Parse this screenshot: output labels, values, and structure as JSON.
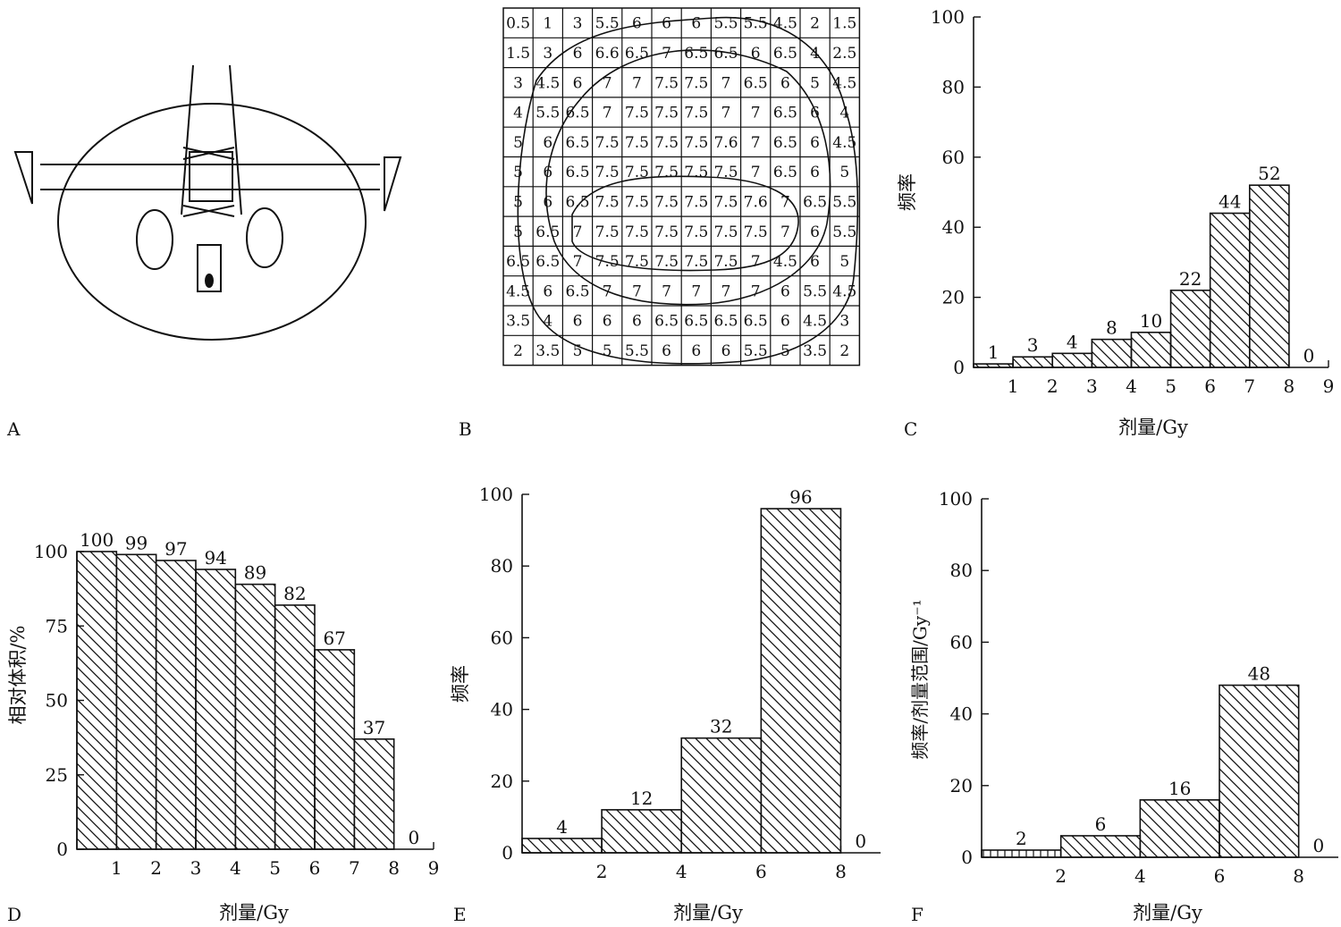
{
  "panel_labels": {
    "A": "A",
    "B": "B",
    "C": "C",
    "D": "D",
    "E": "E",
    "F": "F"
  },
  "axis_labels": {
    "dose": "剂量/Gy",
    "frequency": "频率",
    "relative_volume": "相对体积/%",
    "freq_per_range": "频率/剂量范围/Gy⁻¹"
  },
  "grid_b": {
    "rows": [
      [
        "0.5",
        "1",
        "3",
        "5.5",
        "6",
        "6",
        "6",
        "5.5",
        "5.5",
        "4.5",
        "2",
        "1.5"
      ],
      [
        "1.5",
        "3",
        "6",
        "6.6",
        "6.5",
        "7",
        "6.5",
        "6.5",
        "6",
        "6.5",
        "4",
        "2.5"
      ],
      [
        "3",
        "4.5",
        "6",
        "7",
        "7",
        "7.5",
        "7.5",
        "7",
        "6.5",
        "6",
        "5",
        "4.5"
      ],
      [
        "4",
        "5.5",
        "6.5",
        "7",
        "7.5",
        "7.5",
        "7.5",
        "7",
        "7",
        "6.5",
        "6",
        "4"
      ],
      [
        "5",
        "6",
        "6.5",
        "7.5",
        "7.5",
        "7.5",
        "7.5",
        "7.6",
        "7",
        "6.5",
        "6",
        "4.5"
      ],
      [
        "5",
        "6",
        "6.5",
        "7.5",
        "7.5",
        "7.5",
        "7.5",
        "7.5",
        "7",
        "6.5",
        "6",
        "5"
      ],
      [
        "5",
        "6",
        "6.5",
        "7.5",
        "7.5",
        "7.5",
        "7.5",
        "7.5",
        "7.6",
        "7",
        "6.5",
        "5.5"
      ],
      [
        "5",
        "6.5",
        "7",
        "7.5",
        "7.5",
        "7.5",
        "7.5",
        "7.5",
        "7.5",
        "7",
        "6",
        "5.5"
      ],
      [
        "6.5",
        "6.5",
        "7",
        "7.5",
        "7.5",
        "7.5",
        "7.5",
        "7.5",
        "7",
        "4.5",
        "6",
        "5"
      ],
      [
        "4.5",
        "6",
        "6.5",
        "7",
        "7",
        "7",
        "7",
        "7",
        "7",
        "6",
        "5.5",
        "4.5"
      ],
      [
        "3.5",
        "4",
        "6",
        "6",
        "6",
        "6.5",
        "6.5",
        "6.5",
        "6.5",
        "6",
        "4.5",
        "3"
      ],
      [
        "2",
        "3.5",
        "5",
        "5",
        "5.5",
        "6",
        "6",
        "6",
        "5.5",
        "5",
        "3.5",
        "2"
      ]
    ]
  },
  "chart_data": [
    {
      "panel": "C",
      "type": "bar",
      "bins": [
        [
          0,
          1
        ],
        [
          1,
          2
        ],
        [
          2,
          3
        ],
        [
          3,
          4
        ],
        [
          4,
          5
        ],
        [
          5,
          6
        ],
        [
          6,
          7
        ],
        [
          7,
          8
        ],
        [
          8,
          9
        ]
      ],
      "values": [
        1,
        3,
        4,
        8,
        10,
        22,
        44,
        52,
        0
      ],
      "data_labels": [
        "1",
        "3",
        "4",
        "8",
        "10",
        "22",
        "44",
        "52",
        "0"
      ],
      "xlim": [
        0,
        9
      ],
      "ylim": [
        0,
        100
      ],
      "x_ticks": [
        1,
        2,
        3,
        4,
        5,
        6,
        7,
        8,
        9
      ],
      "y_ticks": [
        0,
        20,
        40,
        60,
        80,
        100
      ],
      "xlabel": "剂量/Gy",
      "ylabel": "频率"
    },
    {
      "panel": "D",
      "type": "bar",
      "bins": [
        [
          0,
          1
        ],
        [
          1,
          2
        ],
        [
          2,
          3
        ],
        [
          3,
          4
        ],
        [
          4,
          5
        ],
        [
          5,
          6
        ],
        [
          6,
          7
        ],
        [
          7,
          8
        ],
        [
          8,
          9
        ]
      ],
      "values": [
        100,
        99,
        97,
        94,
        89,
        82,
        67,
        37,
        0
      ],
      "data_labels": [
        "100",
        "99",
        "97",
        "94",
        "89",
        "82",
        "67",
        "37",
        "0"
      ],
      "xlim": [
        0,
        9
      ],
      "ylim": [
        0,
        100
      ],
      "x_ticks": [
        1,
        2,
        3,
        4,
        5,
        6,
        7,
        8,
        9
      ],
      "y_ticks": [
        0,
        25,
        50,
        75,
        100
      ],
      "xlabel": "剂量/Gy",
      "ylabel": "相对体积/%"
    },
    {
      "panel": "E",
      "type": "bar",
      "bins": [
        [
          0,
          2
        ],
        [
          2,
          4
        ],
        [
          4,
          6
        ],
        [
          6,
          8
        ],
        [
          8,
          9
        ]
      ],
      "values": [
        4,
        12,
        32,
        96,
        0
      ],
      "data_labels": [
        "4",
        "12",
        "32",
        "96",
        "0"
      ],
      "xlim": [
        0,
        9
      ],
      "ylim": [
        0,
        100
      ],
      "x_ticks": [
        2,
        4,
        6,
        8
      ],
      "y_ticks": [
        0,
        20,
        40,
        60,
        80,
        100
      ],
      "xlabel": "剂量/Gy",
      "ylabel": "频率"
    },
    {
      "panel": "F",
      "type": "bar",
      "bins": [
        [
          0,
          2
        ],
        [
          2,
          4
        ],
        [
          4,
          6
        ],
        [
          6,
          8
        ],
        [
          8,
          9
        ]
      ],
      "values": [
        2,
        6,
        16,
        48,
        0
      ],
      "data_labels": [
        "2",
        "6",
        "16",
        "48",
        "0"
      ],
      "xlim": [
        0,
        9
      ],
      "ylim": [
        0,
        100
      ],
      "x_ticks": [
        2,
        4,
        6,
        8
      ],
      "y_ticks": [
        0,
        20,
        40,
        60,
        80,
        100
      ],
      "xlabel": "剂量/Gy",
      "ylabel": "频率/剂量范围/Gy⁻¹"
    }
  ]
}
